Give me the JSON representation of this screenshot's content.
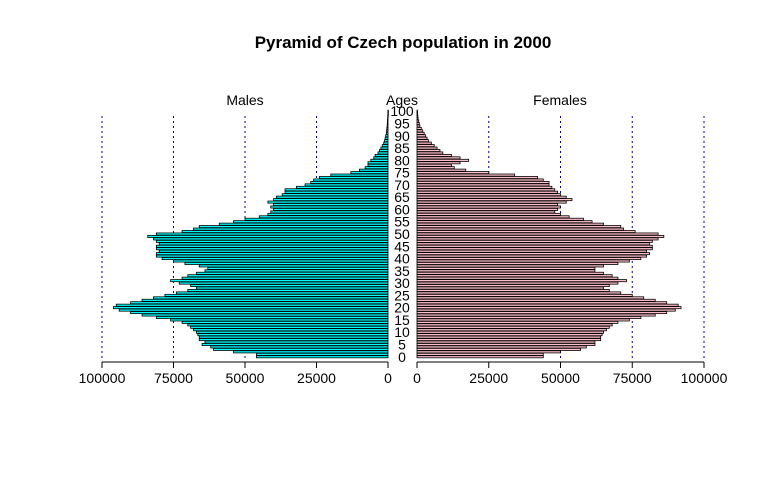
{
  "chart_data": {
    "type": "bar",
    "orientation": "horizontal-pyramid",
    "title": "Pyramid of Czech population in 2000",
    "left_label": "Males",
    "center_label": "Ages",
    "right_label": "Females",
    "xlim": [
      0,
      100000
    ],
    "x_ticks": [
      100000,
      75000,
      50000,
      25000,
      0
    ],
    "x_tick_labels": [
      "100000",
      "75000",
      "50000",
      "25000",
      "0"
    ],
    "age_ticks": [
      0,
      5,
      10,
      15,
      20,
      25,
      30,
      35,
      40,
      45,
      50,
      55,
      60,
      65,
      70,
      75,
      80,
      85,
      90,
      95,
      100
    ],
    "ages": [
      0,
      1,
      2,
      3,
      4,
      5,
      6,
      7,
      8,
      9,
      10,
      11,
      12,
      13,
      14,
      15,
      16,
      17,
      18,
      19,
      20,
      21,
      22,
      23,
      24,
      25,
      26,
      27,
      28,
      29,
      30,
      31,
      32,
      33,
      34,
      35,
      36,
      37,
      38,
      39,
      40,
      41,
      42,
      43,
      44,
      45,
      46,
      47,
      48,
      49,
      50,
      51,
      52,
      53,
      54,
      55,
      56,
      57,
      58,
      59,
      60,
      61,
      62,
      63,
      64,
      65,
      66,
      67,
      68,
      69,
      70,
      71,
      72,
      73,
      74,
      75,
      76,
      77,
      78,
      79,
      80,
      81,
      82,
      83,
      84,
      85,
      86,
      87,
      88,
      89,
      90,
      91,
      92,
      93,
      94,
      95,
      96,
      97,
      98,
      99,
      100
    ],
    "gridlines": [
      100000,
      75000,
      50000,
      25000
    ],
    "colors": {
      "males": "#00ffff",
      "females": "#ffc0cb",
      "bar_stroke": "#000000",
      "grid": "#00008b"
    },
    "series": [
      {
        "name": "Males",
        "values": [
          46000,
          46000,
          54000,
          61000,
          62000,
          65000,
          64000,
          66000,
          66000,
          66500,
          67000,
          68000,
          69000,
          70000,
          72000,
          76000,
          81000,
          86000,
          90000,
          94000,
          96000,
          95000,
          90000,
          86000,
          82000,
          78000,
          74000,
          70000,
          67000,
          69000,
          73000,
          76000,
          72000,
          70000,
          67000,
          64000,
          63000,
          66000,
          71000,
          75000,
          79000,
          81000,
          81000,
          80000,
          81000,
          81000,
          80000,
          81000,
          82000,
          84000,
          81000,
          72000,
          68000,
          66000,
          59000,
          54000,
          50000,
          45000,
          42000,
          41000,
          40000,
          41000,
          40000,
          42000,
          40000,
          39000,
          37000,
          36000,
          36000,
          32000,
          29000,
          27000,
          26000,
          24000,
          20000,
          13000,
          10000,
          8000,
          7000,
          7000,
          6000,
          5000,
          4500,
          3500,
          3000,
          2500,
          2000,
          1500,
          1200,
          1000,
          800,
          600,
          500,
          400,
          300,
          250,
          200,
          150,
          100,
          50,
          30
        ]
      },
      {
        "name": "Females",
        "values": [
          44000,
          44000,
          50000,
          57000,
          59000,
          62000,
          62000,
          64000,
          64000,
          64500,
          65000,
          66000,
          67000,
          68000,
          70000,
          74000,
          78000,
          83000,
          87000,
          90000,
          92000,
          91000,
          87000,
          83000,
          79000,
          75000,
          71000,
          67000,
          65000,
          67000,
          70000,
          73000,
          70000,
          68000,
          65000,
          62000,
          62000,
          65000,
          70000,
          74000,
          78000,
          80000,
          81000,
          80000,
          82000,
          82000,
          81000,
          82000,
          84000,
          86000,
          84000,
          76000,
          72000,
          71000,
          65000,
          61000,
          58000,
          53000,
          50000,
          48000,
          49000,
          50000,
          49000,
          52000,
          54000,
          52000,
          50000,
          49000,
          48000,
          47000,
          46000,
          46000,
          44000,
          42000,
          34000,
          25000,
          17000,
          13000,
          12000,
          15000,
          18000,
          15000,
          12000,
          9000,
          8000,
          7000,
          6000,
          5000,
          4000,
          3500,
          3000,
          2500,
          2000,
          1500,
          1000,
          800,
          600,
          400,
          300,
          200,
          100
        ]
      }
    ]
  }
}
